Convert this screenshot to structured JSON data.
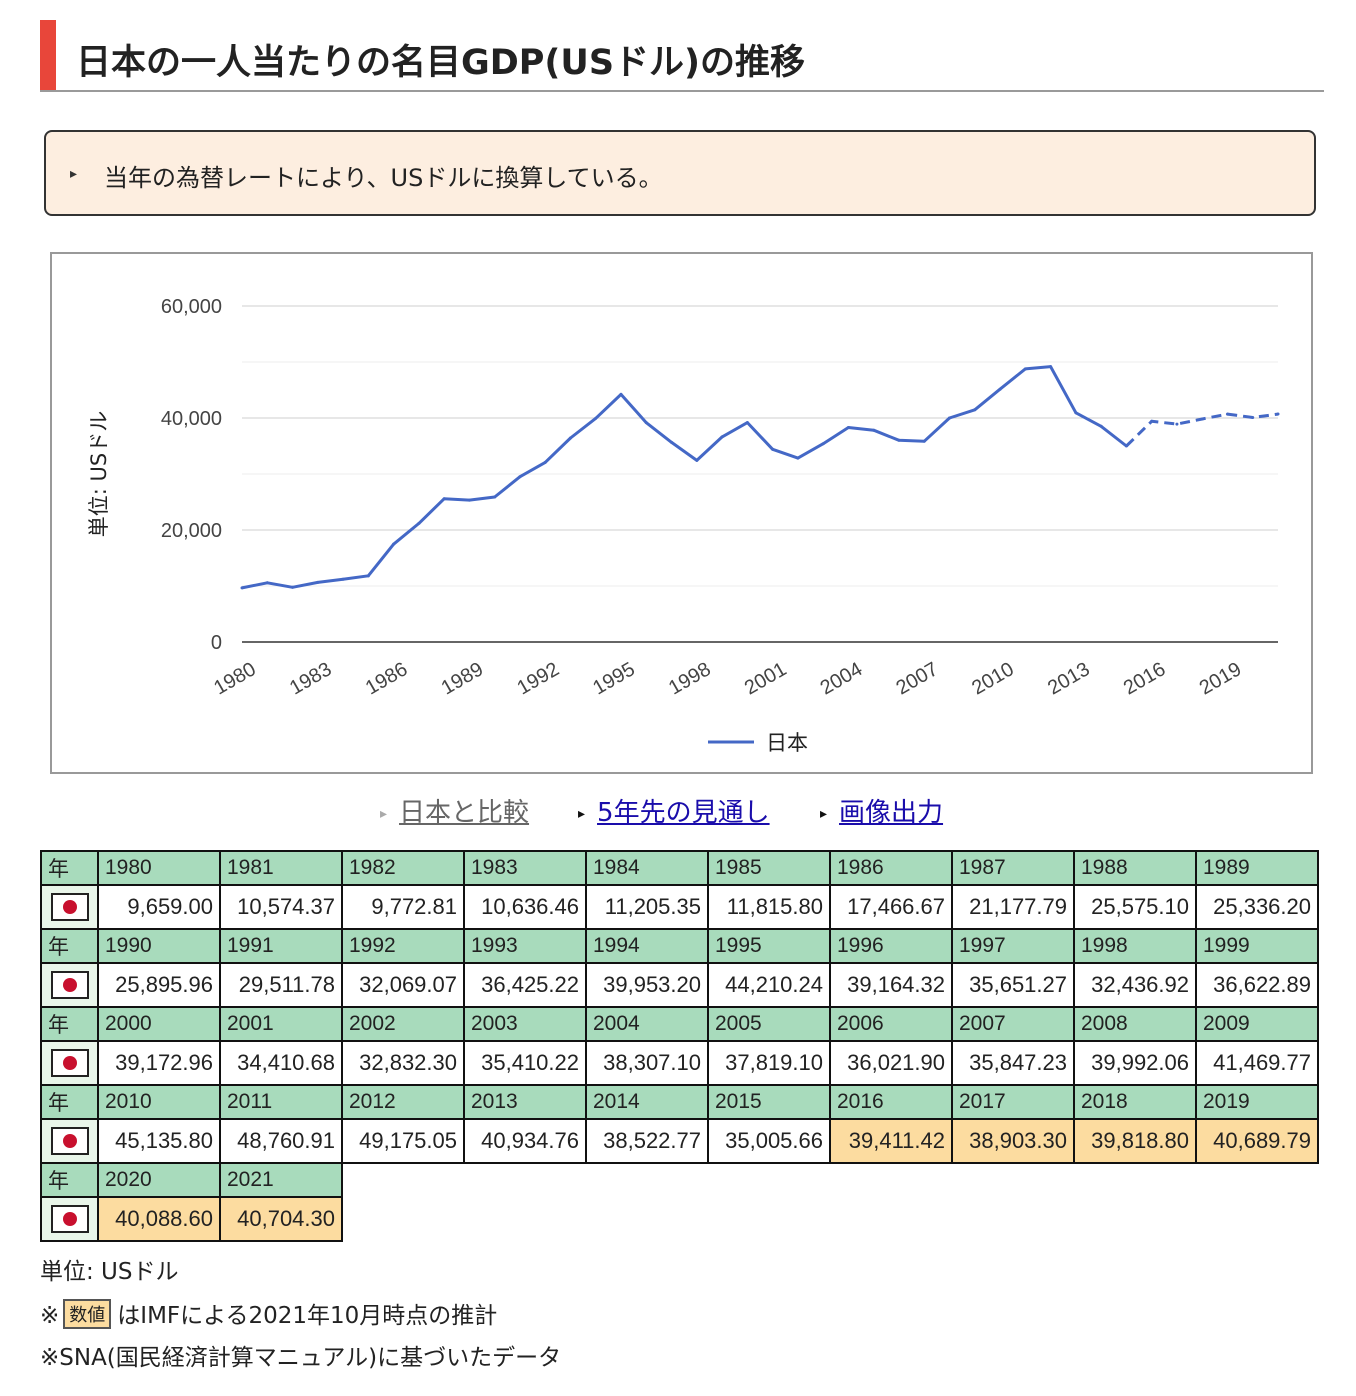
{
  "heading": {
    "title": "日本の一人当たりの名目GDP(USドル)の推移"
  },
  "note": {
    "text": "当年の為替レートにより、USドルに換算している。"
  },
  "chart_data": {
    "type": "line",
    "title": "",
    "ylabel": "単位: USドル",
    "xlabel": "",
    "ylim": [
      0,
      60000
    ],
    "yticks": [
      0,
      20000,
      40000,
      60000
    ],
    "ytick_labels": [
      "0",
      "20,000",
      "40,000",
      "60,000"
    ],
    "grid": true,
    "xtick_labels": [
      "1980",
      "1983",
      "1986",
      "1989",
      "1992",
      "1995",
      "1998",
      "2001",
      "2004",
      "2007",
      "2010",
      "2013",
      "2016",
      "2019"
    ],
    "legend": {
      "position": "bottom",
      "entries": [
        "日本"
      ]
    },
    "estimate_from": 2016,
    "series": [
      {
        "name": "日本",
        "color": "#4468c6",
        "x": [
          1980,
          1981,
          1982,
          1983,
          1984,
          1985,
          1986,
          1987,
          1988,
          1989,
          1990,
          1991,
          1992,
          1993,
          1994,
          1995,
          1996,
          1997,
          1998,
          1999,
          2000,
          2001,
          2002,
          2003,
          2004,
          2005,
          2006,
          2007,
          2008,
          2009,
          2010,
          2011,
          2012,
          2013,
          2014,
          2015,
          2016,
          2017,
          2018,
          2019,
          2020,
          2021
        ],
        "values": [
          9659.0,
          10574.37,
          9772.81,
          10636.46,
          11205.35,
          11815.8,
          17466.67,
          21177.79,
          25575.1,
          25336.2,
          25895.96,
          29511.78,
          32069.07,
          36425.22,
          39953.2,
          44210.24,
          39164.32,
          35651.27,
          32436.92,
          36622.89,
          39172.96,
          34410.68,
          32832.3,
          35410.22,
          38307.1,
          37819.1,
          36021.9,
          35847.23,
          39992.06,
          41469.77,
          45135.8,
          48760.91,
          49175.05,
          40934.76,
          38522.77,
          35005.66,
          39411.42,
          38903.3,
          39818.8,
          40689.79,
          40088.6,
          40704.3
        ]
      }
    ]
  },
  "links": [
    {
      "label": "日本と比較",
      "active": false
    },
    {
      "label": "5年先の見通し",
      "active": true
    },
    {
      "label": "画像出力",
      "active": true
    }
  ],
  "table": {
    "year_label": "年",
    "rows": [
      {
        "years": [
          "1980",
          "1981",
          "1982",
          "1983",
          "1984",
          "1985",
          "1986",
          "1987",
          "1988",
          "1989"
        ],
        "values": [
          "9,659.00",
          "10,574.37",
          "9,772.81",
          "10,636.46",
          "11,205.35",
          "11,815.80",
          "17,466.67",
          "21,177.79",
          "25,575.10",
          "25,336.20"
        ],
        "estimate": [
          false,
          false,
          false,
          false,
          false,
          false,
          false,
          false,
          false,
          false
        ]
      },
      {
        "years": [
          "1990",
          "1991",
          "1992",
          "1993",
          "1994",
          "1995",
          "1996",
          "1997",
          "1998",
          "1999"
        ],
        "values": [
          "25,895.96",
          "29,511.78",
          "32,069.07",
          "36,425.22",
          "39,953.20",
          "44,210.24",
          "39,164.32",
          "35,651.27",
          "32,436.92",
          "36,622.89"
        ],
        "estimate": [
          false,
          false,
          false,
          false,
          false,
          false,
          false,
          false,
          false,
          false
        ]
      },
      {
        "years": [
          "2000",
          "2001",
          "2002",
          "2003",
          "2004",
          "2005",
          "2006",
          "2007",
          "2008",
          "2009"
        ],
        "values": [
          "39,172.96",
          "34,410.68",
          "32,832.30",
          "35,410.22",
          "38,307.10",
          "37,819.10",
          "36,021.90",
          "35,847.23",
          "39,992.06",
          "41,469.77"
        ],
        "estimate": [
          false,
          false,
          false,
          false,
          false,
          false,
          false,
          false,
          false,
          false
        ]
      },
      {
        "years": [
          "2010",
          "2011",
          "2012",
          "2013",
          "2014",
          "2015",
          "2016",
          "2017",
          "2018",
          "2019"
        ],
        "values": [
          "45,135.80",
          "48,760.91",
          "49,175.05",
          "40,934.76",
          "38,522.77",
          "35,005.66",
          "39,411.42",
          "38,903.30",
          "39,818.80",
          "40,689.79"
        ],
        "estimate": [
          false,
          false,
          false,
          false,
          false,
          false,
          true,
          true,
          true,
          true
        ]
      },
      {
        "years": [
          "2020",
          "2021"
        ],
        "values": [
          "40,088.60",
          "40,704.30"
        ],
        "estimate": [
          true,
          true
        ]
      }
    ]
  },
  "footer": {
    "unit": "単位: USドル",
    "estimate_prefix": "※",
    "estimate_box": "数値",
    "estimate_text": "はIMFによる2021年10月時点の推計",
    "sna_note": "※SNA(国民経済計算マニュアル)に基づいたデータ"
  },
  "colors": {
    "accent": "#e8463a",
    "note_bg": "#fdeee0",
    "header_cell": "#a8dbbc",
    "estimate_cell": "#fcdca0",
    "line": "#4468c6",
    "link": "#1a0dab"
  }
}
